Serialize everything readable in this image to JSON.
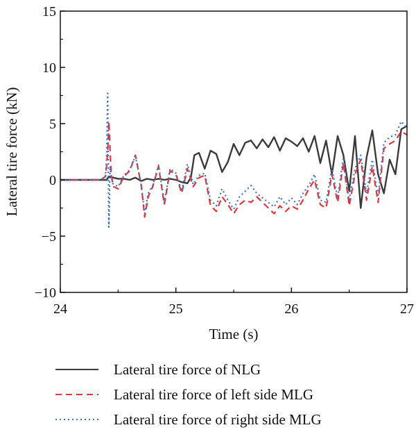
{
  "chart_data": {
    "type": "line",
    "title": "",
    "xlabel": "Time (s)",
    "ylabel": "Lateral tire force (kN)",
    "xlim": [
      24,
      27
    ],
    "ylim": [
      -10,
      15
    ],
    "xticks": [
      24,
      25,
      26,
      27
    ],
    "yticks": [
      15,
      10,
      5,
      0,
      -5,
      -10
    ],
    "ytick_labels": [
      "15",
      "10",
      "5",
      "0",
      "−5",
      "−10"
    ],
    "xtick_labels": [
      "24",
      "25",
      "26",
      "27"
    ],
    "grid": false,
    "legend_position": "below",
    "series": [
      {
        "name": "Lateral tire force of NLG",
        "color": "#3a3a3a",
        "style": "solid",
        "x": [
          24.0,
          24.4,
          24.42,
          24.46,
          24.5,
          24.55,
          24.6,
          24.65,
          24.7,
          24.75,
          24.8,
          24.85,
          24.9,
          24.95,
          25.0,
          25.05,
          25.1,
          25.13,
          25.16,
          25.2,
          25.25,
          25.3,
          25.35,
          25.4,
          25.45,
          25.5,
          25.55,
          25.6,
          25.65,
          25.7,
          25.75,
          25.8,
          25.85,
          25.9,
          25.95,
          26.0,
          26.05,
          26.1,
          26.15,
          26.2,
          26.25,
          26.3,
          26.35,
          26.4,
          26.45,
          26.5,
          26.55,
          26.6,
          26.65,
          26.7,
          26.75,
          26.8,
          26.85,
          26.9,
          26.95,
          27.0
        ],
        "y": [
          0.0,
          0.0,
          0.3,
          0.2,
          0.1,
          0.1,
          0.0,
          0.2,
          -0.1,
          0.1,
          0.0,
          0.1,
          0.0,
          0.1,
          0.0,
          -0.2,
          -0.3,
          0.2,
          2.2,
          2.4,
          1.0,
          2.6,
          2.3,
          0.7,
          1.6,
          3.2,
          2.2,
          3.3,
          3.5,
          2.8,
          3.6,
          2.9,
          3.8,
          2.6,
          3.7,
          3.4,
          3.0,
          3.7,
          2.5,
          3.9,
          1.5,
          3.5,
          0.5,
          3.9,
          2.2,
          -1.0,
          3.9,
          -2.5,
          2.0,
          4.4,
          0.5,
          -1.2,
          1.8,
          0.5,
          4.5,
          4.8
        ]
      },
      {
        "name": "Lateral tire force of left side MLG",
        "color": "#e8323c",
        "style": "dashed",
        "x": [
          24.0,
          24.35,
          24.39,
          24.4,
          24.41,
          24.42,
          24.44,
          24.46,
          24.5,
          24.55,
          24.6,
          24.65,
          24.7,
          24.73,
          24.76,
          24.8,
          24.85,
          24.9,
          24.95,
          25.0,
          25.05,
          25.1,
          25.15,
          25.2,
          25.25,
          25.3,
          25.35,
          25.4,
          25.45,
          25.5,
          25.55,
          25.6,
          25.65,
          25.7,
          25.75,
          25.8,
          25.85,
          25.9,
          25.95,
          26.0,
          26.05,
          26.1,
          26.15,
          26.2,
          26.25,
          26.3,
          26.35,
          26.4,
          26.45,
          26.5,
          26.55,
          26.6,
          26.65,
          26.7,
          26.75,
          26.8,
          26.85,
          26.9,
          26.95,
          27.0
        ],
        "y": [
          0.0,
          0.0,
          0.3,
          1.2,
          2.5,
          5.2,
          0.5,
          -0.6,
          -0.8,
          0.3,
          0.8,
          2.2,
          -0.5,
          -3.3,
          -1.5,
          -0.6,
          1.2,
          -2.2,
          0.8,
          0.5,
          -1.2,
          1.0,
          -0.6,
          0.2,
          0.4,
          -2.3,
          -2.8,
          -1.5,
          -2.2,
          -3.0,
          -2.2,
          -1.8,
          -2.0,
          -1.5,
          -2.0,
          -2.5,
          -3.0,
          -2.3,
          -2.8,
          -2.3,
          -2.6,
          -1.8,
          -0.8,
          0.0,
          -2.2,
          -2.5,
          0.5,
          -2.0,
          1.5,
          -2.3,
          0.5,
          1.8,
          -1.8,
          1.2,
          -2.0,
          2.8,
          3.2,
          3.5,
          4.3,
          4.0
        ]
      },
      {
        "name": "Lateral tire force of right side MLG",
        "color": "#3a72c4",
        "style": "dotted",
        "x": [
          24.0,
          24.35,
          24.39,
          24.4,
          24.41,
          24.42,
          24.43,
          24.45,
          24.5,
          24.55,
          24.6,
          24.65,
          24.7,
          24.73,
          24.76,
          24.8,
          24.85,
          24.9,
          24.95,
          25.0,
          25.05,
          25.1,
          25.15,
          25.2,
          25.25,
          25.3,
          25.35,
          25.4,
          25.45,
          25.5,
          25.55,
          25.6,
          25.65,
          25.7,
          25.75,
          25.8,
          25.85,
          25.9,
          25.95,
          26.0,
          26.05,
          26.1,
          26.15,
          26.2,
          26.25,
          26.3,
          26.35,
          26.4,
          26.45,
          26.5,
          26.55,
          26.6,
          26.65,
          26.7,
          26.75,
          26.8,
          26.85,
          26.9,
          26.95,
          27.0
        ],
        "y": [
          0.0,
          0.0,
          0.2,
          2.0,
          7.7,
          -4.2,
          1.2,
          -0.3,
          -0.6,
          0.4,
          0.9,
          2.1,
          -0.4,
          -3.0,
          -1.2,
          -0.5,
          1.3,
          -2.0,
          1.0,
          0.6,
          -1.0,
          1.4,
          -0.4,
          0.4,
          0.6,
          -1.8,
          -2.3,
          -0.8,
          -1.8,
          -2.6,
          -1.5,
          -1.0,
          -0.5,
          -1.2,
          -1.6,
          -2.0,
          -2.4,
          -1.5,
          -2.2,
          -1.6,
          -2.2,
          -1.2,
          -0.5,
          0.5,
          -1.8,
          -2.0,
          1.0,
          -1.6,
          2.0,
          -1.8,
          1.0,
          2.2,
          -1.2,
          1.8,
          -1.5,
          3.3,
          3.8,
          4.0,
          5.2,
          4.6
        ]
      }
    ]
  }
}
